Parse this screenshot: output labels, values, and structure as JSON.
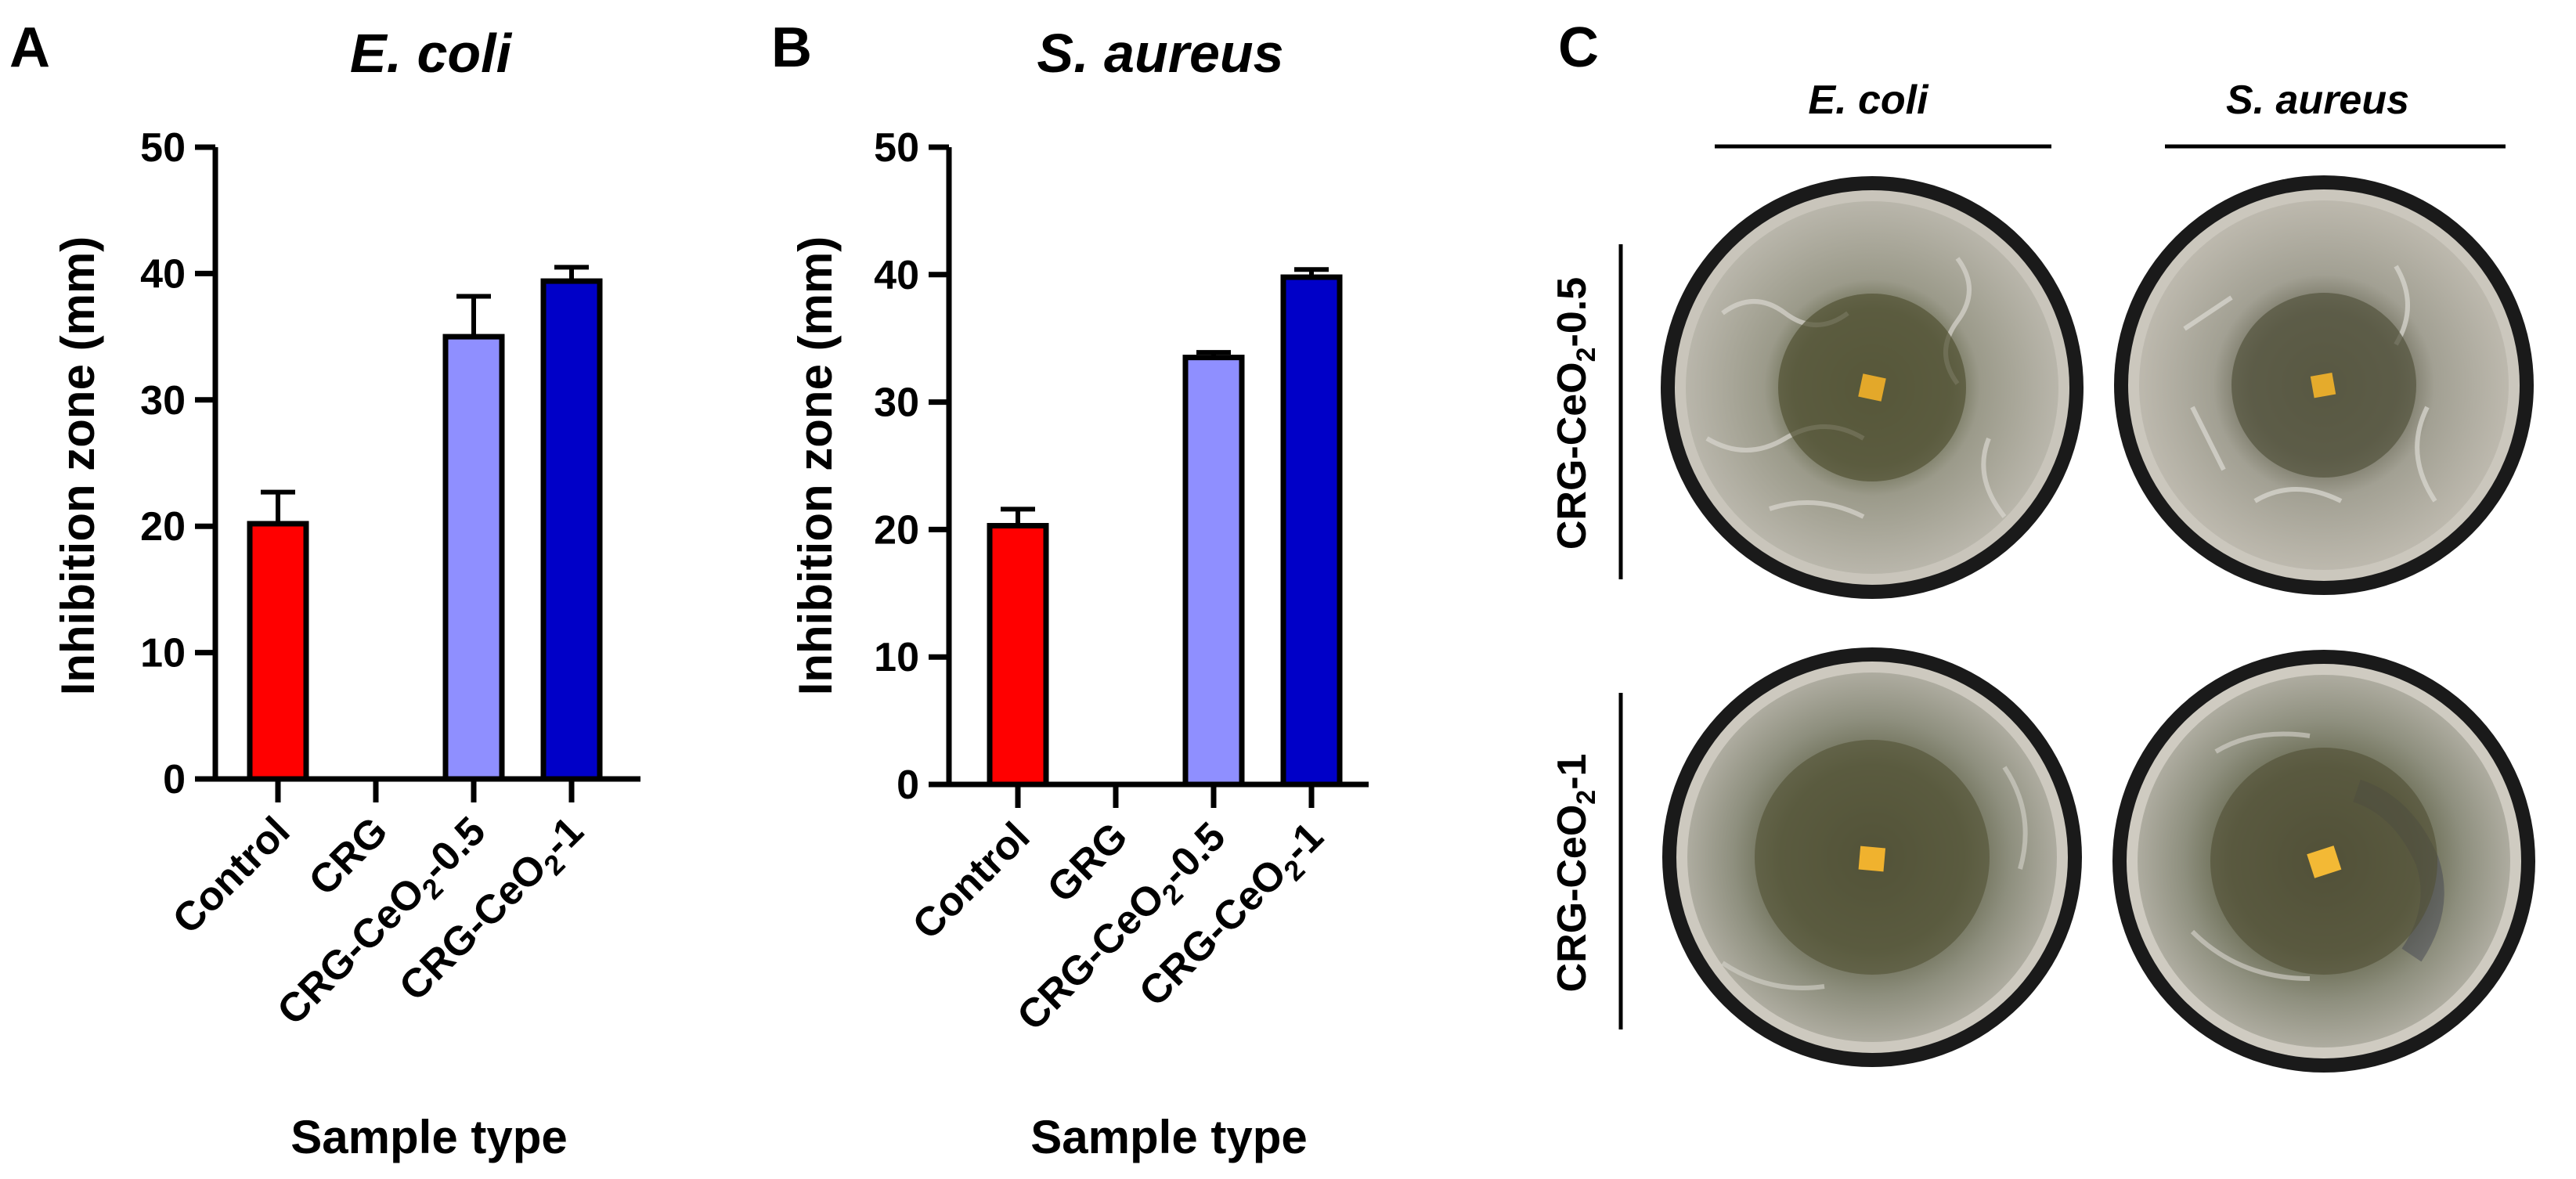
{
  "panels": {
    "a": {
      "letter": "A"
    },
    "b": {
      "letter": "B"
    },
    "c": {
      "letter": "C",
      "columns": [
        "E. coli",
        "S. aureus"
      ],
      "rows": [
        {
          "prefix": "CRG-CeO",
          "sub": "2",
          "suffix": "-0.5"
        },
        {
          "prefix": "CRG-CeO",
          "sub": "2",
          "suffix": "-1"
        }
      ],
      "plate_image": "petri-dish-photo"
    }
  },
  "chart_data": [
    {
      "type": "bar",
      "title": "E. coli",
      "xlabel": "Sample type",
      "ylabel": "Inhibition zone (mm)",
      "ylim": [
        0,
        50
      ],
      "yticks": [
        "0",
        "10",
        "20",
        "30",
        "40",
        "50"
      ],
      "categories": [
        {
          "prefix": "Control",
          "sub": "",
          "suffix": ""
        },
        {
          "prefix": "CRG",
          "sub": "",
          "suffix": ""
        },
        {
          "prefix": "CRG-CeO",
          "sub": "2",
          "suffix": "-0.5"
        },
        {
          "prefix": "CRG-CeO",
          "sub": "2",
          "suffix": "-1"
        }
      ],
      "values": [
        20.2,
        0,
        35.0,
        39.4
      ],
      "errors": [
        2.5,
        0,
        3.2,
        1.1
      ],
      "colors": [
        "#ff0000",
        "#ffffff",
        "#8f8fff",
        "#0000c8"
      ]
    },
    {
      "type": "bar",
      "title": "S. aureus",
      "xlabel": "Sample type",
      "ylabel": "Inhibition zone (mm)",
      "ylim": [
        0,
        50
      ],
      "yticks": [
        "0",
        "10",
        "20",
        "30",
        "40",
        "50"
      ],
      "categories": [
        {
          "prefix": "Control",
          "sub": "",
          "suffix": ""
        },
        {
          "prefix": "GRG",
          "sub": "",
          "suffix": ""
        },
        {
          "prefix": "CRG-CeO",
          "sub": "2",
          "suffix": "-0.5"
        },
        {
          "prefix": "CRG-CeO",
          "sub": "2",
          "suffix": "-1"
        }
      ],
      "values": [
        20.3,
        0,
        33.5,
        39.8
      ],
      "errors": [
        1.3,
        0,
        0.4,
        0.6
      ],
      "colors": [
        "#ff0000",
        "#ffffff",
        "#8f8fff",
        "#0000c8"
      ]
    }
  ]
}
